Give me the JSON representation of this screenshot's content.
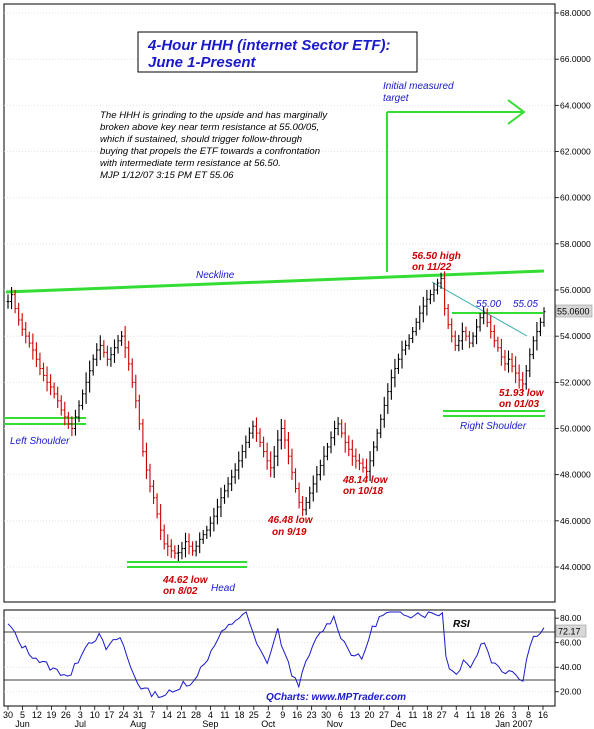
{
  "chart_data": [
    {
      "type": "bar",
      "title": "4-Hour HHH (internet Sector ETF):",
      "subtitle": "June 1-Present",
      "commentary": [
        "The HHH is grinding to the upside and has marginally",
        "broken above key near term resistance at 55.00/05,",
        "which if sustained, should trigger follow-through",
        "buying that propels the ETF towards a confrontation",
        "with intermediate term resistance at 56.50.",
        "MJP  1/12/07  3:15 PM ET  55.06"
      ],
      "ylim": [
        43,
        68
      ],
      "y_ticks": [
        "44.0000",
        "46.0000",
        "48.0000",
        "50.0000",
        "52.0000",
        "54.0000",
        "56.0000",
        "58.0000",
        "60.0000",
        "62.0000",
        "64.0000",
        "66.0000",
        "68.0000"
      ],
      "last_price": "55.0600",
      "x_day_ticks": [
        "30",
        "5",
        "12",
        "19",
        "26",
        "3",
        "10",
        "17",
        "24",
        "31",
        "7",
        "14",
        "21",
        "28",
        "4",
        "11",
        "18",
        "25",
        "2",
        "9",
        "16",
        "23",
        "30",
        "6",
        "13",
        "20",
        "27",
        "4",
        "11",
        "18",
        "27",
        "4",
        "11",
        "18",
        "26",
        "3",
        "8",
        "16"
      ],
      "x_month_ticks": [
        "Jun",
        "Jul",
        "Aug",
        "Sep",
        "Oct",
        "Nov",
        "Dec",
        "Jan 2007"
      ],
      "series": [
        {
          "values": [
            55.5,
            55.8,
            55.2,
            54.7,
            54.3,
            54.0,
            53.7,
            53.4,
            53.0,
            52.6,
            52.3,
            52.0,
            51.8,
            51.5,
            51.2,
            50.8,
            50.5,
            50.2,
            50.0,
            50.5,
            51.0,
            51.5,
            52.0,
            52.5,
            53.0,
            53.4,
            53.6,
            53.3,
            53.0,
            53.2,
            53.5,
            53.8,
            54.0,
            53.5,
            52.8,
            52.0,
            51.2,
            50.2,
            49.0,
            48.2,
            47.5,
            47.0,
            46.3,
            45.6,
            45.0,
            44.9,
            44.7,
            44.6,
            44.62,
            44.8,
            45.1,
            44.9,
            44.7,
            44.9,
            45.2,
            45.4,
            45.6,
            45.9,
            46.2,
            46.6,
            47.0,
            47.3,
            47.6,
            47.9,
            48.2,
            48.6,
            49.0,
            49.4,
            49.8,
            50.1,
            49.8,
            49.4,
            49.0,
            48.6,
            48.3,
            48.8,
            49.5,
            50.0,
            49.5,
            48.8,
            48.1,
            47.4,
            46.8,
            46.48,
            46.8,
            47.2,
            47.6,
            48.0,
            48.4,
            48.8,
            49.2,
            49.6,
            50.0,
            50.2,
            49.8,
            49.4,
            49.1,
            48.8,
            48.6,
            48.5,
            48.3,
            48.14,
            48.6,
            49.2,
            49.8,
            50.4,
            51.0,
            51.6,
            52.2,
            52.6,
            53.0,
            53.4,
            53.6,
            53.9,
            54.2,
            54.6,
            55.0,
            55.3,
            55.6,
            55.8,
            56.0,
            56.3,
            56.5,
            55.2,
            54.5,
            54.0,
            53.6,
            53.8,
            54.2,
            54.0,
            53.7,
            54.0,
            54.4,
            54.8,
            55.0,
            54.6,
            54.2,
            53.8,
            53.5,
            53.1,
            52.8,
            53.0,
            52.7,
            52.4,
            52.1,
            51.93,
            52.5,
            53.2,
            53.8,
            54.2,
            54.6,
            55.06
          ]
        }
      ],
      "annotations": {
        "neckline": "Neckline",
        "target": [
          "Initial measured",
          "target"
        ],
        "high_label": [
          "56.50 high",
          "on 11/22"
        ],
        "res_label_a": "55.00",
        "res_label_b": "55.05",
        "low_dec": [
          "51.93 low",
          "on 01/03"
        ],
        "low_oct": [
          "48.14 low",
          "on 10/18"
        ],
        "low_sep": [
          "46.48 low",
          "on 9/19"
        ],
        "low_aug": [
          "44.62 low",
          "on 8/02"
        ],
        "left_shoulder": "Left Shoulder",
        "right_shoulder": "Right Shoulder",
        "head": "Head",
        "watermark": "QCharts: www.MPTrader.com"
      },
      "colors": {
        "up": "#000000",
        "down": "#cc0000",
        "lines": "#33dd33",
        "trend": "#33aaaa",
        "text_blue": "#1a1acc",
        "text_red": "#cc0000",
        "price_box": "#d8d8d8"
      }
    },
    {
      "type": "line",
      "title": "RSI",
      "ylim": [
        10,
        85
      ],
      "y_ticks": [
        "20.00",
        "40.00",
        "60.00",
        "80.00"
      ],
      "last_value": "72.17",
      "series": [
        {
          "values": [
            74,
            72,
            66,
            61,
            58,
            55,
            52,
            50,
            48,
            45,
            43,
            42,
            40,
            38,
            37,
            36,
            35,
            34,
            33,
            40,
            46,
            52,
            58,
            60,
            62,
            64,
            65,
            60,
            55,
            57,
            60,
            63,
            64,
            57,
            48,
            40,
            34,
            28,
            24,
            22,
            20,
            19,
            18,
            18,
            17,
            18,
            19,
            19,
            20,
            25,
            30,
            27,
            24,
            28,
            35,
            40,
            44,
            48,
            52,
            58,
            63,
            67,
            70,
            73,
            76,
            79,
            81,
            83,
            84,
            76,
            66,
            58,
            53,
            48,
            45,
            52,
            62,
            70,
            60,
            50,
            42,
            35,
            30,
            27,
            34,
            42,
            50,
            56,
            62,
            67,
            71,
            74,
            78,
            80,
            74,
            66,
            60,
            56,
            52,
            50,
            48,
            46,
            55,
            64,
            71,
            76,
            80,
            82,
            83,
            84,
            84,
            83,
            84,
            84,
            84,
            83,
            84,
            84,
            84,
            83,
            84,
            84,
            84,
            84,
            84,
            50,
            41,
            36,
            34,
            40,
            48,
            44,
            40,
            45,
            52,
            58,
            61,
            53,
            46,
            42,
            40,
            38,
            36,
            40,
            37,
            34,
            32,
            31,
            46,
            58,
            64,
            68,
            70,
            72.17
          ]
        }
      ]
    }
  ]
}
